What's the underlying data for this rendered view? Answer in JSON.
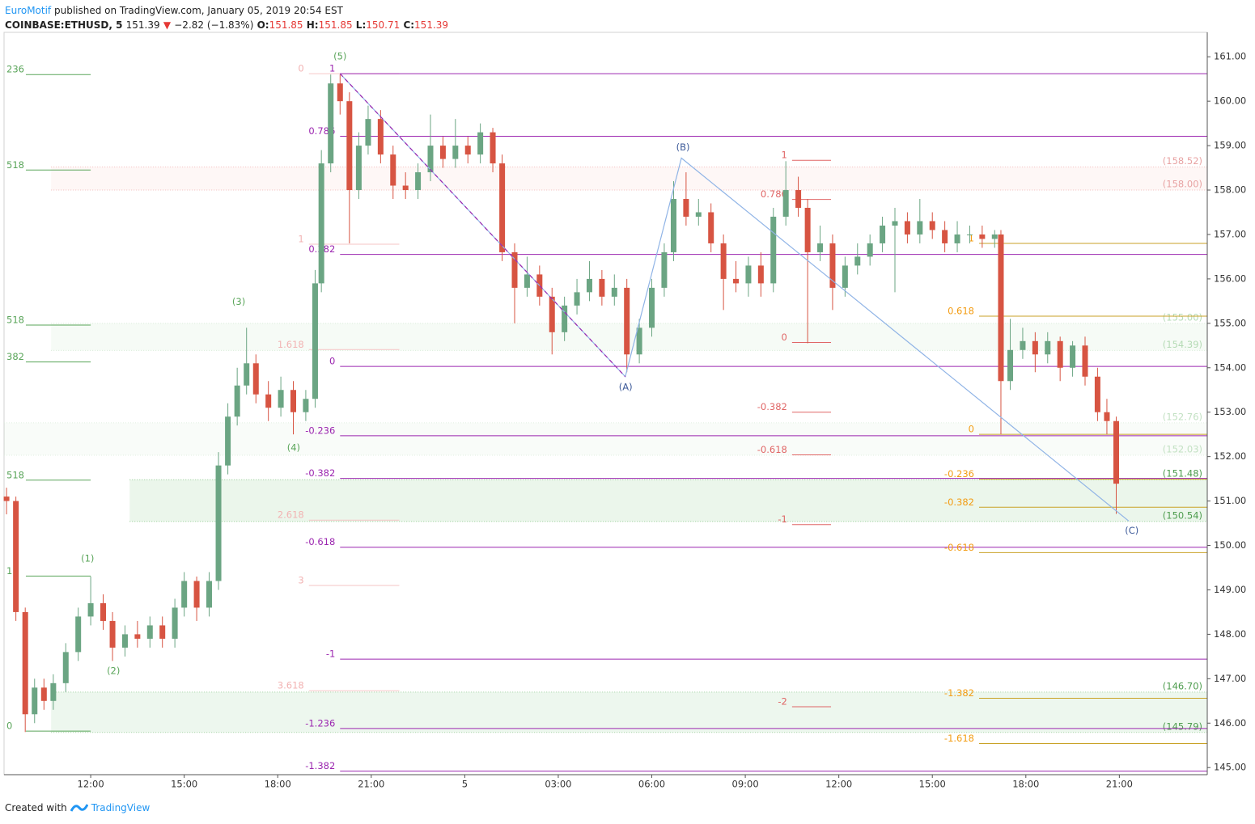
{
  "header": {
    "author": "EuroMotif",
    "published": " published on TradingView.com, January 05, 2019 20:54 EST",
    "symbol": "COINBASE:ETHUSD, 5",
    "price": 151.39,
    "arrow": "▼",
    "change": "−2.82 (−1.83%)",
    "o_label": "O:",
    "open": 151.85,
    "h_label": "H:",
    "high": 151.85,
    "l_label": "L:",
    "low": 150.71,
    "c_label": "C:",
    "close": 151.39
  },
  "footer": {
    "created": "Created with",
    "brand": "TradingView"
  },
  "chart_data": {
    "type": "candlestick",
    "xlim": [
      9.22,
      47.82
    ],
    "ylim": [
      144.84,
      161.55
    ],
    "xticks": [
      {
        "value": 12,
        "label": "12:00"
      },
      {
        "value": 15,
        "label": "15:00"
      },
      {
        "value": 18,
        "label": "18:00"
      },
      {
        "value": 21,
        "label": "21:00"
      },
      {
        "value": 24,
        "label": "5"
      },
      {
        "value": 27,
        "label": "03:00"
      },
      {
        "value": 30,
        "label": "06:00"
      },
      {
        "value": 33,
        "label": "09:00"
      },
      {
        "value": 36,
        "label": "12:00"
      },
      {
        "value": 39,
        "label": "15:00"
      },
      {
        "value": 42,
        "label": "18:00"
      },
      {
        "value": 45,
        "label": "21:00"
      }
    ],
    "yticks": [
      {
        "value": 145,
        "label": "145.00"
      },
      {
        "value": 146,
        "label": "146.00"
      },
      {
        "value": 147,
        "label": "147.00"
      },
      {
        "value": 148,
        "label": "148.00"
      },
      {
        "value": 149,
        "label": "149.00"
      },
      {
        "value": 150,
        "label": "150.00"
      },
      {
        "value": 151,
        "label": "151.00"
      },
      {
        "value": 152,
        "label": "152.00"
      },
      {
        "value": 153,
        "label": "153.00"
      },
      {
        "value": 154,
        "label": "154.00"
      },
      {
        "value": 155,
        "label": "155.00"
      },
      {
        "value": 156,
        "label": "156.00"
      },
      {
        "value": 157,
        "label": "157.00"
      },
      {
        "value": 158,
        "label": "158.00"
      },
      {
        "value": 159,
        "label": "159.00"
      },
      {
        "value": 160,
        "label": "160.00"
      },
      {
        "value": 161,
        "label": "161.00"
      }
    ],
    "up_color": "#6ba583",
    "down_color": "#d75442",
    "candles": [
      [
        9.3,
        151.1,
        151.3,
        150.7,
        151.0
      ],
      [
        9.6,
        151.0,
        151.1,
        148.3,
        148.5
      ],
      [
        9.9,
        148.5,
        148.6,
        145.8,
        146.2
      ],
      [
        10.2,
        146.2,
        147.0,
        146.0,
        146.8
      ],
      [
        10.5,
        146.8,
        147.0,
        146.3,
        146.5
      ],
      [
        10.8,
        146.5,
        147.1,
        146.3,
        146.9
      ],
      [
        11.2,
        146.9,
        147.8,
        146.7,
        147.6
      ],
      [
        11.6,
        147.6,
        148.6,
        147.4,
        148.4
      ],
      [
        12.0,
        148.4,
        149.3,
        148.2,
        148.7
      ],
      [
        12.4,
        148.7,
        148.9,
        148.1,
        148.3
      ],
      [
        12.7,
        148.3,
        148.5,
        147.4,
        147.7
      ],
      [
        13.1,
        147.7,
        148.2,
        147.5,
        148.0
      ],
      [
        13.5,
        148.0,
        148.3,
        147.7,
        147.9
      ],
      [
        13.9,
        147.9,
        148.4,
        147.7,
        148.2
      ],
      [
        14.3,
        148.2,
        148.4,
        147.7,
        147.9
      ],
      [
        14.7,
        147.9,
        148.8,
        147.7,
        148.6
      ],
      [
        15.0,
        148.6,
        149.4,
        148.4,
        149.2
      ],
      [
        15.4,
        149.2,
        149.3,
        148.3,
        148.6
      ],
      [
        15.8,
        148.6,
        149.4,
        148.4,
        149.2
      ],
      [
        16.1,
        149.2,
        152.1,
        149.0,
        151.8
      ],
      [
        16.4,
        151.8,
        153.2,
        151.6,
        152.9
      ],
      [
        16.7,
        152.9,
        154.0,
        152.7,
        153.6
      ],
      [
        17.0,
        153.6,
        154.9,
        153.4,
        154.1
      ],
      [
        17.3,
        154.1,
        154.3,
        153.2,
        153.4
      ],
      [
        17.7,
        153.4,
        153.7,
        152.8,
        153.1
      ],
      [
        18.1,
        153.1,
        153.8,
        152.9,
        153.5
      ],
      [
        18.5,
        153.5,
        153.7,
        152.5,
        153.0
      ],
      [
        18.9,
        153.0,
        153.5,
        152.8,
        153.3
      ],
      [
        19.2,
        153.3,
        156.2,
        153.1,
        155.9
      ],
      [
        19.4,
        155.9,
        158.9,
        155.7,
        158.6
      ],
      [
        19.7,
        158.6,
        160.6,
        158.4,
        160.4
      ],
      [
        20.0,
        160.4,
        160.6,
        159.7,
        160.0
      ],
      [
        20.3,
        160.0,
        160.2,
        156.8,
        158.0
      ],
      [
        20.6,
        158.0,
        159.3,
        157.8,
        159.0
      ],
      [
        20.9,
        159.0,
        159.9,
        158.8,
        159.6
      ],
      [
        21.3,
        159.6,
        159.8,
        158.6,
        158.8
      ],
      [
        21.7,
        158.8,
        159.0,
        157.8,
        158.1
      ],
      [
        22.1,
        158.1,
        158.4,
        157.8,
        158.0
      ],
      [
        22.5,
        158.0,
        158.6,
        157.8,
        158.4
      ],
      [
        22.9,
        158.4,
        159.7,
        158.2,
        159.0
      ],
      [
        23.3,
        159.0,
        159.2,
        158.5,
        158.7
      ],
      [
        23.7,
        158.7,
        159.6,
        158.5,
        159.0
      ],
      [
        24.1,
        159.0,
        159.2,
        158.6,
        158.8
      ],
      [
        24.5,
        158.8,
        159.5,
        158.6,
        159.3
      ],
      [
        24.9,
        159.3,
        159.4,
        158.4,
        158.6
      ],
      [
        25.2,
        158.6,
        158.8,
        156.4,
        156.6
      ],
      [
        25.6,
        156.6,
        156.8,
        155.0,
        155.8
      ],
      [
        26.0,
        155.8,
        156.5,
        155.6,
        156.1
      ],
      [
        26.4,
        156.1,
        156.3,
        155.4,
        155.6
      ],
      [
        26.8,
        155.6,
        155.8,
        154.3,
        154.8
      ],
      [
        27.2,
        154.8,
        155.6,
        154.6,
        155.4
      ],
      [
        27.6,
        155.4,
        156.0,
        155.2,
        155.7
      ],
      [
        28.0,
        155.7,
        156.4,
        155.5,
        156.0
      ],
      [
        28.4,
        156.0,
        156.2,
        155.4,
        155.6
      ],
      [
        28.8,
        155.6,
        156.1,
        155.4,
        155.8
      ],
      [
        29.2,
        155.8,
        156.0,
        153.9,
        154.3
      ],
      [
        29.6,
        154.3,
        155.1,
        154.1,
        154.9
      ],
      [
        30.0,
        154.9,
        156.0,
        154.7,
        155.8
      ],
      [
        30.4,
        155.8,
        156.8,
        155.6,
        156.6
      ],
      [
        30.7,
        156.6,
        158.2,
        156.4,
        157.8
      ],
      [
        31.1,
        157.8,
        158.4,
        157.2,
        157.4
      ],
      [
        31.5,
        157.4,
        157.8,
        157.2,
        157.5
      ],
      [
        31.9,
        157.5,
        157.7,
        156.6,
        156.8
      ],
      [
        32.3,
        156.8,
        157.0,
        155.3,
        156.0
      ],
      [
        32.7,
        156.0,
        156.4,
        155.7,
        155.9
      ],
      [
        33.1,
        155.9,
        156.5,
        155.6,
        156.3
      ],
      [
        33.5,
        156.3,
        156.6,
        155.6,
        155.9
      ],
      [
        33.9,
        155.9,
        157.6,
        155.7,
        157.4
      ],
      [
        34.3,
        157.4,
        158.65,
        157.2,
        158.0
      ],
      [
        34.7,
        158.0,
        158.3,
        157.4,
        157.6
      ],
      [
        35.0,
        157.6,
        157.8,
        154.55,
        156.6
      ],
      [
        35.4,
        156.6,
        157.2,
        156.4,
        156.8
      ],
      [
        35.8,
        156.8,
        157.0,
        155.3,
        155.8
      ],
      [
        36.2,
        155.8,
        156.5,
        155.6,
        156.3
      ],
      [
        36.6,
        156.3,
        156.8,
        156.1,
        156.5
      ],
      [
        37.0,
        156.5,
        157.0,
        156.3,
        156.8
      ],
      [
        37.4,
        156.8,
        157.4,
        156.6,
        157.2
      ],
      [
        37.8,
        157.2,
        157.6,
        155.7,
        157.3
      ],
      [
        38.2,
        157.3,
        157.5,
        156.8,
        157.0
      ],
      [
        38.6,
        157.0,
        157.8,
        156.8,
        157.3
      ],
      [
        39.0,
        157.3,
        157.5,
        156.9,
        157.1
      ],
      [
        39.4,
        157.1,
        157.3,
        156.6,
        156.8
      ],
      [
        39.8,
        156.8,
        157.3,
        156.6,
        157.0
      ],
      [
        40.2,
        157.0,
        157.2,
        156.8,
        157.0
      ],
      [
        40.6,
        157.0,
        157.2,
        156.7,
        156.9
      ],
      [
        41.0,
        156.9,
        157.1,
        156.7,
        157.0
      ],
      [
        41.2,
        157.0,
        157.1,
        152.5,
        153.7
      ],
      [
        41.5,
        153.7,
        155.1,
        153.5,
        154.4
      ],
      [
        41.9,
        154.4,
        154.9,
        154.2,
        154.6
      ],
      [
        42.3,
        154.6,
        154.8,
        153.9,
        154.3
      ],
      [
        42.7,
        154.3,
        154.8,
        154.1,
        154.6
      ],
      [
        43.1,
        154.6,
        154.7,
        153.7,
        154.0
      ],
      [
        43.5,
        154.0,
        154.6,
        153.8,
        154.5
      ],
      [
        43.9,
        154.5,
        154.7,
        153.6,
        153.8
      ],
      [
        44.3,
        153.8,
        154.0,
        152.8,
        153.0
      ],
      [
        44.6,
        153.0,
        153.3,
        152.5,
        152.8
      ],
      [
        44.9,
        152.8,
        152.9,
        150.71,
        151.39
      ]
    ],
    "zones": [
      {
        "prices": [
          158.52,
          158.0
        ],
        "value_labels": [
          "(158.52)",
          "(158.00)"
        ],
        "start": 10.73,
        "fill": "rgba(242,139,130,0.07)",
        "border": "#f4b8b8",
        "label_color": "#e8a3a3"
      },
      {
        "prices": [
          155.0,
          154.39
        ],
        "value_labels": [
          "(155.00)",
          "(154.39)"
        ],
        "start": 10.73,
        "fill": "rgba(129,199,132,0.07)",
        "border": "#d5ead5",
        "label_color": "#b5dbb5"
      },
      {
        "prices": [
          152.76,
          152.03
        ],
        "value_labels": [
          "(152.76)",
          "(152.03)"
        ],
        "start": 9.22,
        "fill": "rgba(129,199,132,0.05)",
        "border": "#e0efe0",
        "label_color": "#c3e1c3"
      },
      {
        "prices": [
          151.48,
          150.54
        ],
        "value_labels": [
          "(151.48)",
          "(150.54)"
        ],
        "start": 13.25,
        "fill": "rgba(129,199,132,0.16)",
        "border": "#8fc98f",
        "label_color": "#4f9d4f"
      },
      {
        "prices": [
          146.7,
          145.79
        ],
        "value_labels": [
          "(146.70)",
          "(145.79)"
        ],
        "start": 10.73,
        "fill": "rgba(129,199,132,0.14)",
        "border": "#9fd09f",
        "label_color": "#4f9d4f"
      }
    ],
    "fibs": [
      {
        "x": [
          9.92,
          12.0
        ],
        "line_color": "#5aa55a",
        "label_color": "#5aa55a",
        "label_align": "left",
        "levels": [
          {
            "label": "236",
            "price": 160.6
          },
          {
            "label": "518",
            "price": 158.45
          },
          {
            "label": "518",
            "price": 154.96
          },
          {
            "label": "382",
            "price": 154.13
          },
          {
            "label": "518",
            "price": 151.47
          },
          {
            "label": "1",
            "price": 149.31
          },
          {
            "label": "0",
            "price": 145.82
          }
        ]
      },
      {
        "x": [
          19.0,
          21.9
        ],
        "line_color": "#f6c6c6",
        "label_color": "#f2b3b3",
        "label_align": "right",
        "levels": [
          {
            "label": "0",
            "price": 160.62
          },
          {
            "label": "1",
            "price": 156.78
          },
          {
            "label": "1.618",
            "price": 154.41
          },
          {
            "label": "2.618",
            "price": 150.57
          },
          {
            "label": "3",
            "price": 149.1
          },
          {
            "label": "3.618",
            "price": 146.73
          }
        ]
      },
      {
        "x": [
          20.0,
          47.82
        ],
        "line_color": "#9c27b0",
        "label_color": "#9c27b0",
        "label_align": "right",
        "levels": [
          {
            "label": "1",
            "price": 160.62
          },
          {
            "label": "0.786",
            "price": 159.21
          },
          {
            "label": "0.382",
            "price": 156.55
          },
          {
            "label": "0",
            "price": 154.03
          },
          {
            "label": "-0.236",
            "price": 152.47
          },
          {
            "label": "-0.382",
            "price": 151.51
          },
          {
            "label": "-0.618",
            "price": 149.96
          },
          {
            "label": "-1",
            "price": 147.44
          },
          {
            "label": "-1.236",
            "price": 145.88
          },
          {
            "label": "-1.382",
            "price": 144.92
          }
        ]
      },
      {
        "x": [
          34.5,
          35.75
        ],
        "line_color": "#e06666",
        "label_color": "#e06666",
        "label_align": "right",
        "levels": [
          {
            "label": "1",
            "price": 158.67
          },
          {
            "label": "0.786",
            "price": 157.79
          },
          {
            "label": "0",
            "price": 154.57
          },
          {
            "label": "-0.382",
            "price": 153.0
          },
          {
            "label": "-0.618",
            "price": 152.04
          },
          {
            "label": "-1",
            "price": 150.47
          },
          {
            "label": "-2",
            "price": 146.37
          }
        ]
      },
      {
        "x": [
          40.5,
          47.82
        ],
        "line_color": "#c9a227",
        "label_color": "#f39c12",
        "label_align": "right",
        "levels": [
          {
            "label": "1",
            "price": 156.8
          },
          {
            "label": "0.618",
            "price": 155.16
          },
          {
            "label": "0",
            "price": 152.5
          },
          {
            "label": "-0.236",
            "price": 151.49
          },
          {
            "label": "-0.382",
            "price": 150.86
          },
          {
            "label": "-0.618",
            "price": 149.84
          },
          {
            "label": "-1.382",
            "price": 146.56
          },
          {
            "label": "-1.618",
            "price": 145.54
          }
        ]
      }
    ],
    "wave_lines": [
      {
        "color": "#90b4e6",
        "dash": false,
        "points": [
          [
            20.0,
            160.62
          ],
          [
            29.15,
            153.8
          ],
          [
            30.95,
            158.72
          ],
          [
            45.3,
            150.55
          ]
        ]
      },
      {
        "color": "#9c27b0",
        "dash": true,
        "points": [
          [
            20.0,
            160.62
          ],
          [
            29.15,
            153.8
          ]
        ]
      }
    ],
    "wave_labels": [
      {
        "text": "(1)",
        "x": 11.9,
        "y": 149.7,
        "color": "#5aa55a"
      },
      {
        "text": "(2)",
        "x": 12.73,
        "y": 147.17,
        "color": "#5aa55a"
      },
      {
        "text": "(3)",
        "x": 16.75,
        "y": 155.48,
        "color": "#5aa55a"
      },
      {
        "text": "(4)",
        "x": 18.51,
        "y": 152.19,
        "color": "#5aa55a"
      },
      {
        "text": "(5)",
        "x": 20.0,
        "y": 161.0,
        "color": "#5aa55a"
      },
      {
        "text": "(A)",
        "x": 29.16,
        "y": 153.56,
        "color": "#3d5a99"
      },
      {
        "text": "(B)",
        "x": 31.0,
        "y": 158.96,
        "color": "#3d5a99"
      },
      {
        "text": "(C)",
        "x": 45.4,
        "y": 150.33,
        "color": "#3d5a99"
      }
    ]
  }
}
